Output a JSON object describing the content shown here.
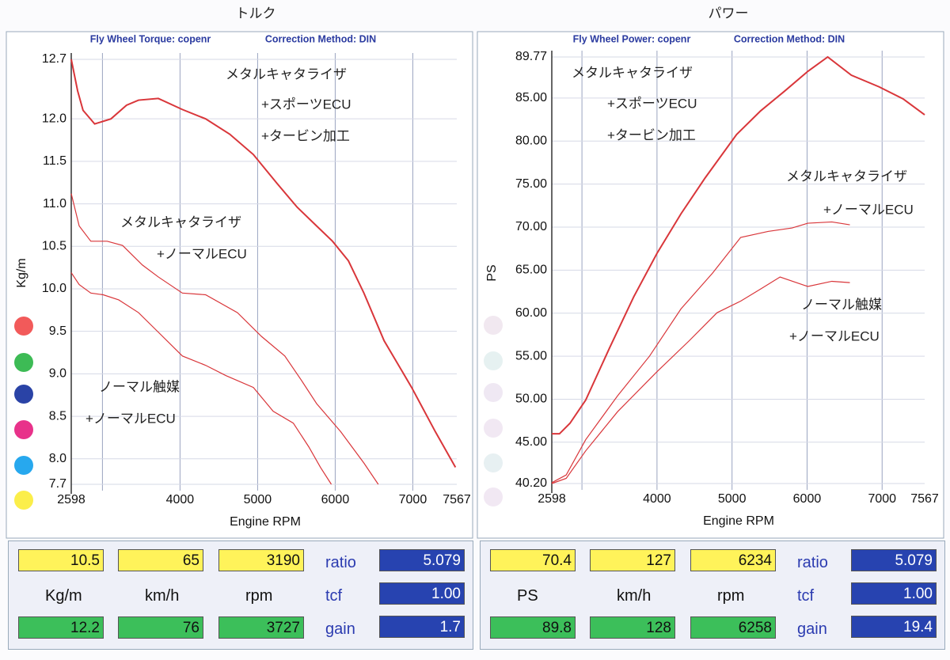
{
  "chart_data": [
    {
      "type": "line",
      "title": "トルク",
      "subtitle": [
        "Fly Wheel Torque: copenr",
        "Correction Method: DIN"
      ],
      "xlabel": "Engine RPM",
      "ylabel": "Kg/m",
      "xlim": [
        2598,
        7567
      ],
      "xticks": [
        2598,
        4000,
        5000,
        6000,
        7000,
        7567
      ],
      "xgrid": [
        3000,
        4000,
        5000,
        6000,
        7000
      ],
      "ylim": [
        7.7,
        12.7
      ],
      "yticks": [
        12.7,
        {
          "value": 12,
          "label": "12.0"
        },
        11.5,
        {
          "value": 11,
          "label": "11.0"
        },
        10.5,
        {
          "value": 10,
          "label": "10.0"
        },
        9.5,
        {
          "value": 9,
          "label": "9.0"
        },
        8.5,
        {
          "value": 8,
          "label": "8.0"
        },
        7.7
      ],
      "grid": true,
      "series": [
        {
          "color": "#d9363a",
          "x": [
            2598,
            2680,
            2750,
            2900,
            3110,
            3310,
            3465,
            3720,
            4030,
            4330,
            4640,
            4945,
            5250,
            5510,
            5760,
            5965,
            6170,
            6370,
            6630,
            6985,
            7290,
            7550
          ],
          "values": [
            12.7,
            12.33,
            12.1,
            11.94,
            12.0,
            12.16,
            12.22,
            12.24,
            12.11,
            12.0,
            11.82,
            11.58,
            11.24,
            10.96,
            10.74,
            10.56,
            10.33,
            9.95,
            9.39,
            8.84,
            8.32,
            7.9
          ]
        },
        {
          "color": "#d9363a",
          "x": [
            2598,
            2700,
            2850,
            3060,
            3260,
            3515,
            3720,
            4030,
            4330,
            4740,
            5050,
            5350,
            5560,
            5760,
            6070,
            6370,
            6555
          ],
          "values": [
            11.12,
            10.74,
            10.56,
            10.56,
            10.51,
            10.28,
            10.14,
            9.95,
            9.93,
            9.72,
            9.44,
            9.21,
            8.93,
            8.65,
            8.32,
            7.95,
            7.7
          ]
        },
        {
          "color": "#d9363a",
          "x": [
            2598,
            2700,
            2850,
            3010,
            3210,
            3465,
            3720,
            4030,
            4330,
            4590,
            4945,
            5200,
            5460,
            5660,
            5810,
            5950
          ],
          "values": [
            10.19,
            10.05,
            9.95,
            9.93,
            9.87,
            9.72,
            9.49,
            9.21,
            9.1,
            8.98,
            8.84,
            8.56,
            8.42,
            8.14,
            7.9,
            7.7
          ]
        }
      ],
      "annotations": [
        "メタルキャタライザ",
        "+スポーツECU",
        "+タービン加工",
        "メタルキャタライザ",
        "+ノーマルECU",
        "ノーマル触媒",
        "+ノーマルECU"
      ]
    },
    {
      "type": "line",
      "title": "パワー",
      "subtitle": [
        "Fly Wheel Power: copenr",
        "Correction Method: DIN"
      ],
      "xlabel": "Engine RPM",
      "ylabel": "PS",
      "xlim": [
        2598,
        7567
      ],
      "xticks": [
        2598,
        4000,
        5000,
        6000,
        7000,
        7567
      ],
      "xgrid": [
        3000,
        4000,
        5000,
        6000,
        7000
      ],
      "ylim": [
        40.2,
        89.77
      ],
      "yticks": [
        89.77,
        {
          "value": 85,
          "label": "85.00"
        },
        {
          "value": 80,
          "label": "80.00"
        },
        {
          "value": 75,
          "label": "75.00"
        },
        {
          "value": 70,
          "label": "70.00"
        },
        {
          "value": 65,
          "label": "65.00"
        },
        {
          "value": 60,
          "label": "60.00"
        },
        {
          "value": 55,
          "label": "55.00"
        },
        {
          "value": 50,
          "label": "50.00"
        },
        {
          "value": 45,
          "label": "45.00"
        },
        {
          "value": 40.2,
          "label": "40.20"
        }
      ],
      "grid": true,
      "series": [
        {
          "color": "#d9363a",
          "x": [
            2598,
            2700,
            2840,
            3050,
            3370,
            3690,
            4000,
            4320,
            4640,
            5060,
            5380,
            5700,
            6010,
            6275,
            6590,
            6960,
            7280,
            7567
          ],
          "values": [
            45.98,
            45.98,
            47.2,
            49.9,
            56.0,
            61.9,
            66.95,
            71.55,
            75.7,
            80.75,
            83.5,
            85.8,
            88.1,
            89.77,
            87.65,
            86.3,
            84.9,
            83.05
          ]
        },
        {
          "color": "#d9363a",
          "x": [
            2598,
            2790,
            3050,
            3475,
            3900,
            4320,
            4740,
            5115,
            5480,
            5800,
            6010,
            6330,
            6570
          ],
          "values": [
            40.3,
            41.2,
            45.3,
            50.4,
            55.0,
            60.5,
            64.65,
            68.8,
            69.5,
            69.9,
            70.45,
            70.6,
            70.27
          ]
        },
        {
          "color": "#d9363a",
          "x": [
            2598,
            2790,
            3050,
            3475,
            4000,
            4430,
            4800,
            5115,
            5380,
            5640,
            6010,
            6330,
            6570
          ],
          "values": [
            40.2,
            40.8,
            44.0,
            48.55,
            53.2,
            56.8,
            60.05,
            61.4,
            62.8,
            64.2,
            63.1,
            63.7,
            63.55
          ]
        }
      ],
      "annotations": [
        "メタルキャタライザ",
        "+スポーツECU",
        "+タービン加工",
        "メタルキャタライザ",
        "+ノーマルECU",
        "ノーマル触媒",
        "+ノーマルECU"
      ]
    }
  ],
  "readouts": [
    {
      "top": [
        "10.5",
        "65",
        "3190"
      ],
      "units": [
        "Kg/m",
        "km/h",
        "rpm"
      ],
      "bottom": [
        "12.2",
        "76",
        "3727"
      ],
      "keys": [
        "ratio",
        "tcf",
        "gain"
      ],
      "values": [
        "5.079",
        "1.00",
        "1.7"
      ]
    },
    {
      "top": [
        "70.4",
        "127",
        "6234"
      ],
      "units": [
        "PS",
        "km/h",
        "rpm"
      ],
      "bottom": [
        "89.8",
        "128",
        "6258"
      ],
      "keys": [
        "ratio",
        "tcf",
        "gain"
      ],
      "values": [
        "5.079",
        "1.00",
        "19.4"
      ]
    }
  ]
}
